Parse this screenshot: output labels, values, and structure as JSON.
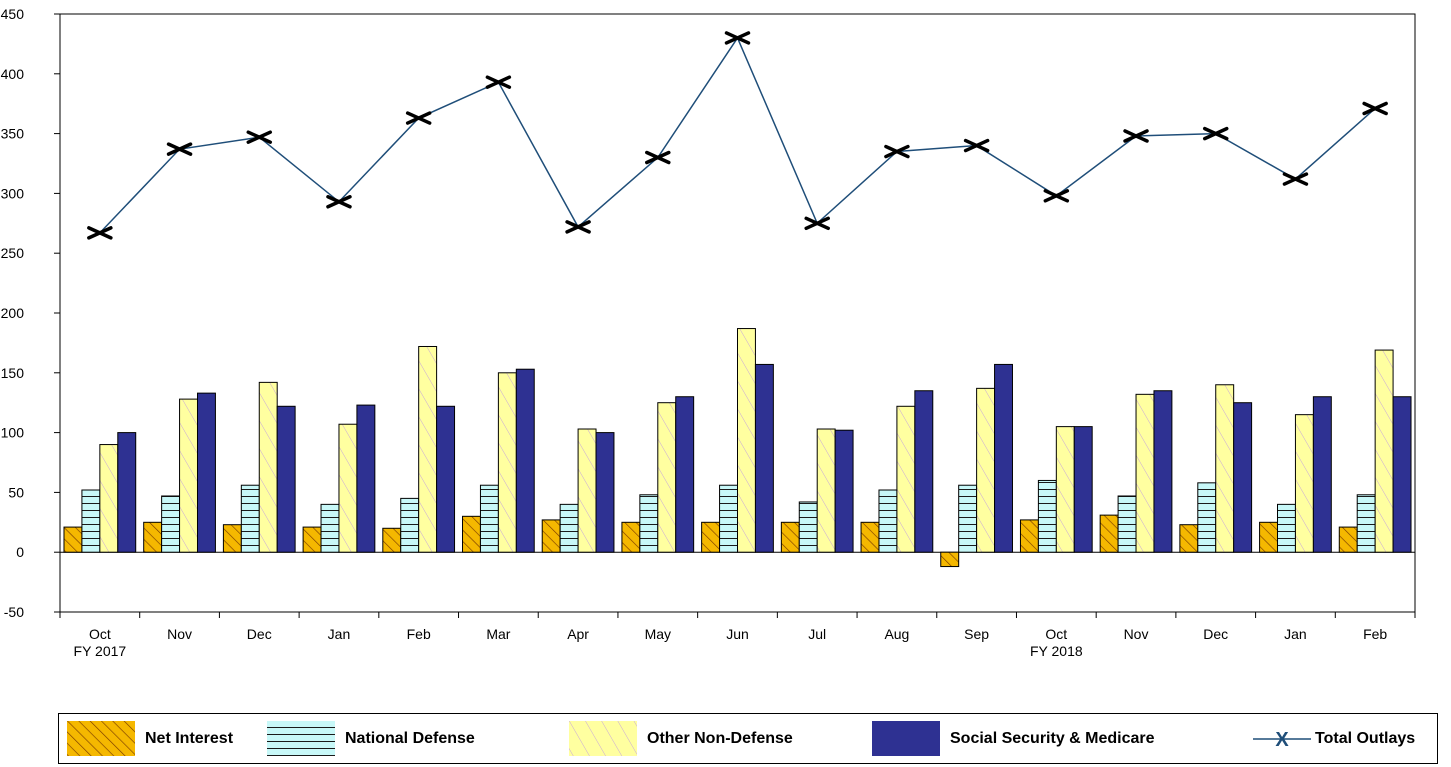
{
  "chart_data": {
    "type": "bar",
    "categories": [
      "Oct",
      "Nov",
      "Dec",
      "Jan",
      "Feb",
      "Mar",
      "Apr",
      "May",
      "Jun",
      "Jul",
      "Aug",
      "Sep",
      "Oct",
      "Nov",
      "Dec",
      "Jan",
      "Feb"
    ],
    "category_sublabels": [
      "FY 2017",
      "",
      "",
      "",
      "",
      "",
      "",
      "",
      "",
      "",
      "",
      "",
      "FY 2018",
      "",
      "",
      "",
      ""
    ],
    "series": [
      {
        "name": "Net Interest",
        "type": "bar",
        "color": "#F5B800",
        "pattern": "diagonal-hatch",
        "values": [
          21,
          25,
          23,
          21,
          20,
          30,
          27,
          25,
          25,
          25,
          25,
          -12,
          27,
          31,
          23,
          25,
          21
        ]
      },
      {
        "name": "National Defense",
        "type": "bar",
        "color": "#C8F8F8",
        "pattern": "horizontal-lines",
        "values": [
          52,
          47,
          56,
          40,
          45,
          56,
          40,
          48,
          56,
          42,
          52,
          56,
          60,
          47,
          58,
          40,
          48
        ]
      },
      {
        "name": "Other Non-Defense",
        "type": "bar",
        "color": "#FFFFA0",
        "pattern": "light-diagonal",
        "values": [
          90,
          128,
          142,
          107,
          172,
          150,
          103,
          125,
          187,
          103,
          122,
          137,
          105,
          132,
          140,
          115,
          169
        ]
      },
      {
        "name": "Social Security & Medicare",
        "type": "bar",
        "color": "#2E3192",
        "values": [
          100,
          133,
          122,
          123,
          122,
          153,
          100,
          130,
          157,
          102,
          135,
          157,
          105,
          135,
          125,
          130,
          130
        ]
      },
      {
        "name": "Total Outlays",
        "type": "line",
        "color": "#1F4E79",
        "marker": "X",
        "values": [
          267,
          337,
          347,
          293,
          363,
          393,
          272,
          330,
          430,
          275,
          335,
          340,
          298,
          348,
          350,
          312,
          371
        ]
      }
    ],
    "y_ticks": [
      "-50",
      "0",
      "50",
      "100",
      "150",
      "200",
      "250",
      "300",
      "350",
      "400",
      "450"
    ],
    "ylim": [
      -50,
      450
    ],
    "grid": false,
    "legend_position": "bottom",
    "legend_marker_text": "X"
  }
}
